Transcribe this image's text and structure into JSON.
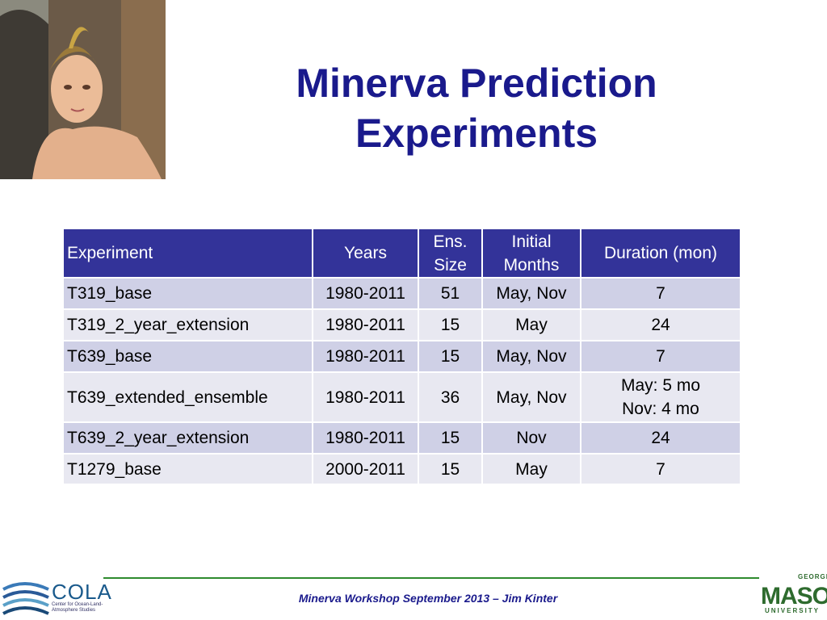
{
  "header": {
    "title": [
      "Minerva Prediction",
      "Experiments"
    ]
  },
  "table": {
    "columns": [
      "Experiment",
      "Years",
      "Ens.\nSize",
      "Initial\nMonths",
      "Duration (mon)"
    ],
    "rows": [
      [
        "T319_base",
        "1980-2011",
        "51",
        "May, Nov",
        "7"
      ],
      [
        "T319_2_year_extension",
        "1980-2011",
        "15",
        "May",
        "24"
      ],
      [
        "T639_base",
        "1980-2011",
        "15",
        "May, Nov",
        "7"
      ],
      [
        "T639_extended_ensemble",
        "1980-2011",
        "36",
        "May, Nov",
        "May: 5 mo\nNov: 4 mo"
      ],
      [
        "T639_2_year_extension",
        "1980-2011",
        "15",
        "Nov",
        "24"
      ],
      [
        "T1279_base",
        "2000-2011",
        "15",
        "May",
        "7"
      ]
    ]
  },
  "footer": {
    "text": "Minerva Workshop September 2013 – Jim Kinter",
    "cola": "COLA",
    "cola_subtitle": "Center for Ocean-Land-Atmosphere Studies",
    "gmu": [
      "GEORGE",
      "MASON",
      "UNIVERSITY"
    ]
  }
}
